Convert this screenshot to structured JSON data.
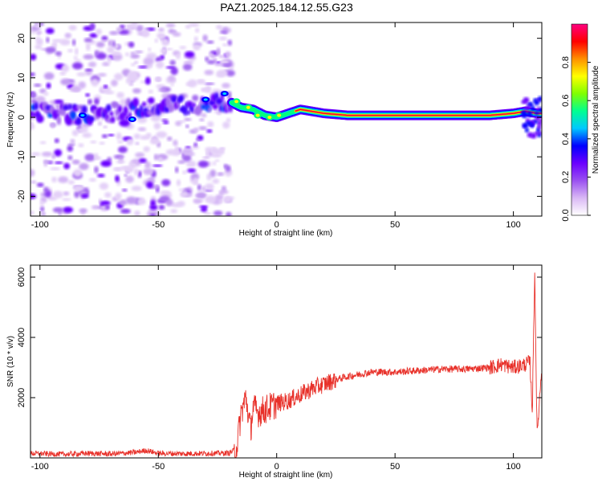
{
  "figure": {
    "title": "PAZ1.2025.184.12.55.G23"
  },
  "chart_data": [
    {
      "type": "heatmap",
      "xlabel": "Height of straight line (km)",
      "ylabel": "Frequency (Hz)",
      "xlim": [
        -104,
        112
      ],
      "ylim": [
        -25,
        24
      ],
      "x_ticks": [
        -100,
        -50,
        0,
        50,
        100
      ],
      "y_ticks": [
        -20,
        -10,
        0,
        10,
        20
      ],
      "colorbar": {
        "label": "Normalized spectral amplitude",
        "range": [
          0,
          1
        ],
        "ticks": [
          0,
          0.2,
          0.4,
          0.6,
          0.8
        ],
        "tick_labels": [
          "0.0",
          "0.2",
          "0.4",
          "0.6",
          "0.8"
        ],
        "colormap": [
          "#ffffff",
          "#d9b8f5",
          "#9a50f0",
          "#6a00ff",
          "#0000ff",
          "#00c8ff",
          "#00ff90",
          "#80ff00",
          "#ffff00",
          "#ff9000",
          "#ff0000",
          "#ff0080"
        ]
      },
      "ridge": {
        "description_points_x": [
          -100,
          -80,
          -60,
          -40,
          -20,
          -15,
          -10,
          -5,
          0,
          5,
          10,
          20,
          30,
          50,
          70,
          90,
          100,
          105,
          110
        ],
        "frequency_hz": [
          1.5,
          0.5,
          2,
          3,
          4,
          2.5,
          2,
          0.5,
          0,
          1,
          2,
          1,
          0.5,
          0.5,
          0.5,
          0.5,
          1,
          1.5,
          1
        ]
      },
      "noise_region_x": [
        -104,
        -19
      ]
    },
    {
      "type": "line",
      "xlabel": "Height of straight line (km)",
      "ylabel": "SNR (10 * v/v)",
      "xlim": [
        -104,
        112
      ],
      "ylim": [
        0,
        6400
      ],
      "x_ticks": [
        -100,
        -50,
        0,
        50,
        100
      ],
      "y_ticks": [
        2000,
        4000,
        6000
      ],
      "series": [
        {
          "color": "#e8312a",
          "x": [
            -104,
            -90,
            -80,
            -70,
            -60,
            -55,
            -50,
            -40,
            -30,
            -20,
            -17,
            -15,
            -13,
            -11,
            -10,
            -8,
            -5,
            0,
            5,
            10,
            15,
            20,
            25,
            30,
            40,
            50,
            60,
            70,
            80,
            90,
            95,
            100,
            105,
            107,
            108,
            109,
            110,
            112
          ],
          "y": [
            150,
            120,
            150,
            130,
            180,
            250,
            150,
            140,
            150,
            160,
            300,
            1500,
            2000,
            900,
            1700,
            1500,
            1600,
            1800,
            1900,
            2100,
            2300,
            2450,
            2600,
            2700,
            2850,
            2850,
            2900,
            2950,
            2950,
            3000,
            3100,
            3000,
            3100,
            3200,
            1500,
            6300,
            700,
            3100
          ]
        }
      ]
    }
  ]
}
